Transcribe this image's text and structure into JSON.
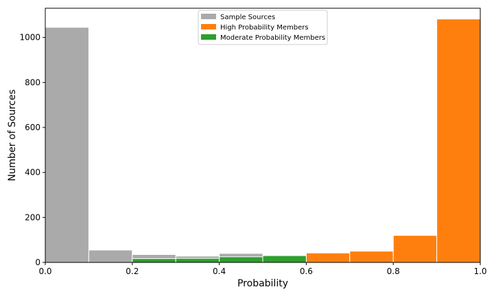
{
  "chart_data": {
    "type": "bar",
    "subtype": "histogram",
    "xlabel": "Probability",
    "ylabel": "Number of Sources",
    "xlim": [
      0.0,
      1.0
    ],
    "ylim": [
      0,
      1130
    ],
    "bin_edges": [
      0.0,
      0.1,
      0.2,
      0.3,
      0.4,
      0.5,
      0.6,
      0.7,
      0.8,
      0.9,
      1.0
    ],
    "x_ticks": [
      "0.0",
      "0.2",
      "0.4",
      "0.6",
      "0.8",
      "1.0"
    ],
    "x_tick_values": [
      0.0,
      0.2,
      0.4,
      0.6,
      0.8,
      1.0
    ],
    "y_ticks": [
      "0",
      "200",
      "400",
      "600",
      "800",
      "1000"
    ],
    "y_tick_values": [
      0,
      200,
      400,
      600,
      800,
      1000
    ],
    "series": [
      {
        "name": "Sample Sources",
        "color": "#aaaaaa",
        "values": [
          1045,
          55,
          35,
          28,
          40,
          33,
          0,
          0,
          0,
          0
        ]
      },
      {
        "name": "High Probability Members",
        "color": "#ff7f0e",
        "values": [
          0,
          0,
          0,
          0,
          0,
          0,
          42,
          50,
          120,
          1082
        ]
      },
      {
        "name": "Moderate Probability Members",
        "color": "#2ca02c",
        "values": [
          0,
          0,
          17,
          18,
          25,
          30,
          0,
          0,
          0,
          0
        ]
      }
    ],
    "legend_position": "top-center",
    "grid": false
  }
}
